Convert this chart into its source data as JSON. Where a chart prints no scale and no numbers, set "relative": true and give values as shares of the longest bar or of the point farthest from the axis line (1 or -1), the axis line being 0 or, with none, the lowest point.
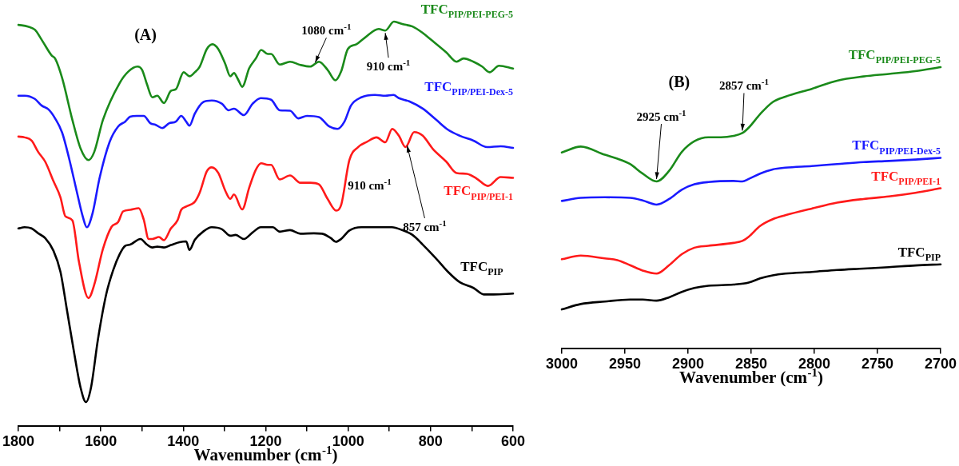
{
  "chart_data": [
    {
      "type": "line",
      "relative": true,
      "xlabel": "Wavenumber (cm$^{-1}$)",
      "xlim": [
        1800,
        600
      ],
      "xticks": [
        1800,
        {
          "value": 1700,
          "label": null
        },
        1600,
        {
          "value": 1500,
          "label": null
        },
        1400,
        {
          "value": 1300,
          "label": null
        },
        1200,
        {
          "value": 1100,
          "label": null
        },
        1000,
        {
          "value": 900,
          "label": null
        },
        800,
        {
          "value": 700,
          "label": null
        },
        600
      ],
      "tick_labels": "x",
      "marker": "none",
      "line_style": "solid",
      "annotations": [
        "(A)",
        {
          "text": "1080 cm$^{-1}$",
          "x": 1080,
          "y": 0.893
        },
        {
          "text": "910 cm$^{-1}$",
          "x": 910,
          "y": 0.978
        },
        "910 cm$^{-1}$",
        {
          "text": "857 cm$^{-1}$",
          "x": 857,
          "y": 0.7
        }
      ],
      "series": [
        {
          "name": "TFC$_{PIP/PEI-PEG-5}$",
          "color": "#1a8a1a",
          "x": [
            1800,
            1777,
            1760,
            1744,
            1719,
            1711,
            1694,
            1669,
            1649,
            1630,
            1616,
            1595,
            1554,
            1533,
            1511,
            1500,
            1488,
            1475,
            1463,
            1447,
            1430,
            1418,
            1399,
            1385,
            1372,
            1360,
            1343,
            1329,
            1315,
            1298,
            1286,
            1277,
            1267,
            1257,
            1240,
            1224,
            1211,
            1195,
            1187,
            1166,
            1141,
            1116,
            1092,
            1071,
            1050,
            1031,
            1017,
            1001,
            980,
            960,
            926,
            910,
            889,
            869,
            844,
            819,
            795,
            762,
            737,
            720,
            696,
            675,
            657,
            634,
            600
          ],
          "values": [
            0.992,
            0.988,
            0.98,
            0.956,
            0.916,
            0.909,
            0.861,
            0.757,
            0.686,
            0.658,
            0.678,
            0.757,
            0.849,
            0.877,
            0.889,
            0.881,
            0.845,
            0.813,
            0.817,
            0.799,
            0.829,
            0.833,
            0.875,
            0.865,
            0.875,
            0.889,
            0.932,
            0.944,
            0.932,
            0.895,
            0.865,
            0.873,
            0.857,
            0.839,
            0.885,
            0.909,
            0.93,
            0.92,
            0.92,
            0.894,
            0.901,
            0.893,
            0.889,
            0.901,
            0.881,
            0.855,
            0.877,
            0.932,
            0.944,
            0.96,
            0.982,
            0.978,
            1,
            0.994,
            0.988,
            0.972,
            0.952,
            0.924,
            0.901,
            0.909,
            0.901,
            0.889,
            0.875,
            0.891,
            0.884
          ]
        },
        {
          "name": "TFC$_{PIP/PEI-Dex-5}$",
          "color": "#1a1aff",
          "x": [
            1800,
            1785,
            1760,
            1744,
            1727,
            1711,
            1694,
            1677,
            1657,
            1644,
            1634,
            1620,
            1603,
            1579,
            1558,
            1541,
            1529,
            1513,
            1496,
            1480,
            1467,
            1451,
            1434,
            1418,
            1405,
            1393,
            1385,
            1372,
            1352,
            1331,
            1306,
            1290,
            1277,
            1253,
            1232,
            1212,
            1187,
            1166,
            1141,
            1121,
            1100,
            1071,
            1046,
            1026,
            1009,
            993,
            968,
            935,
            910,
            890,
            877,
            852,
            819,
            786,
            758,
            729,
            696,
            663,
            630,
            600
          ],
          "values": [
            0.817,
            0.817,
            0.809,
            0.793,
            0.783,
            0.761,
            0.726,
            0.662,
            0.574,
            0.519,
            0.492,
            0.527,
            0.614,
            0.702,
            0.741,
            0.753,
            0.765,
            0.767,
            0.767,
            0.749,
            0.745,
            0.737,
            0.749,
            0.753,
            0.767,
            0.753,
            0.743,
            0.773,
            0.801,
            0.805,
            0.797,
            0.781,
            0.785,
            0.769,
            0.797,
            0.811,
            0.807,
            0.781,
            0.78,
            0.761,
            0.767,
            0.764,
            0.741,
            0.735,
            0.753,
            0.793,
            0.813,
            0.819,
            0.817,
            0.819,
            0.811,
            0.803,
            0.785,
            0.757,
            0.733,
            0.718,
            0.706,
            0.69,
            0.692,
            0.688
          ]
        },
        {
          "name": "TFC$_{PIP/PEI-1}$",
          "color": "#ff1a1a",
          "x": [
            1800,
            1785,
            1768,
            1752,
            1735,
            1715,
            1698,
            1686,
            1669,
            1653,
            1630,
            1616,
            1595,
            1574,
            1558,
            1546,
            1529,
            1508,
            1496,
            1484,
            1475,
            1459,
            1447,
            1430,
            1414,
            1405,
            1393,
            1372,
            1360,
            1343,
            1331,
            1315,
            1298,
            1286,
            1277,
            1257,
            1240,
            1224,
            1211,
            1195,
            1187,
            1166,
            1141,
            1116,
            1092,
            1071,
            1050,
            1029,
            1017,
            997,
            976,
            956,
            931,
            910,
            893,
            877,
            861,
            840,
            819,
            795,
            762,
            737,
            712,
            688,
            661,
            630,
            600
          ],
          "values": [
            0.716,
            0.714,
            0.706,
            0.678,
            0.654,
            0.606,
            0.566,
            0.519,
            0.509,
            0.406,
            0.317,
            0.35,
            0.438,
            0.493,
            0.505,
            0.531,
            0.535,
            0.539,
            0.511,
            0.463,
            0.463,
            0.468,
            0.46,
            0.489,
            0.509,
            0.535,
            0.543,
            0.555,
            0.578,
            0.63,
            0.64,
            0.626,
            0.582,
            0.562,
            0.573,
            0.536,
            0.59,
            0.634,
            0.65,
            0.646,
            0.646,
            0.61,
            0.62,
            0.602,
            0.602,
            0.598,
            0.562,
            0.533,
            0.547,
            0.658,
            0.69,
            0.702,
            0.714,
            0.702,
            0.735,
            0.718,
            0.69,
            0.727,
            0.718,
            0.686,
            0.654,
            0.626,
            0.624,
            0.612,
            0.594,
            0.616,
            0.614
          ]
        },
        {
          "name": "TFC$_{PIP}$",
          "color": "#000000",
          "x": [
            1800,
            1785,
            1768,
            1752,
            1735,
            1715,
            1698,
            1682,
            1665,
            1649,
            1636,
            1624,
            1607,
            1587,
            1570,
            1554,
            1541,
            1529,
            1504,
            1488,
            1475,
            1463,
            1447,
            1430,
            1409,
            1393,
            1385,
            1372,
            1352,
            1331,
            1306,
            1286,
            1273,
            1253,
            1232,
            1212,
            1183,
            1166,
            1141,
            1116,
            1083,
            1063,
            1042,
            1030,
            1017,
            997,
            968,
            927,
            894,
            869,
            844,
            819,
            786,
            758,
            729,
            696,
            671,
            647,
            600
          ],
          "values": [
            0.489,
            0.492,
            0.489,
            0.477,
            0.465,
            0.434,
            0.382,
            0.286,
            0.183,
            0.095,
            0.06,
            0.095,
            0.215,
            0.326,
            0.386,
            0.426,
            0.446,
            0.449,
            0.463,
            0.449,
            0.442,
            0.444,
            0.442,
            0.448,
            0.455,
            0.457,
            0.436,
            0.461,
            0.481,
            0.492,
            0.487,
            0.471,
            0.473,
            0.463,
            0.479,
            0.492,
            0.492,
            0.481,
            0.485,
            0.476,
            0.477,
            0.476,
            0.465,
            0.456,
            0.463,
            0.484,
            0.492,
            0.492,
            0.492,
            0.485,
            0.473,
            0.449,
            0.414,
            0.382,
            0.356,
            0.342,
            0.326,
            0.326,
            0.328
          ]
        }
      ]
    },
    {
      "type": "line",
      "relative": true,
      "xlabel": "Wavenumber (cm$^{-1}$)",
      "xlim": [
        3000,
        2700
      ],
      "xticks": [
        3000,
        2950,
        2900,
        2850,
        2800,
        2750,
        2700
      ],
      "tick_labels": "x",
      "marker": "none",
      "line_style": "solid",
      "annotations": [
        "(B)",
        {
          "text": "2925 cm$^{-1}$",
          "x": 2925,
          "y": 0.594
        },
        {
          "text": "2857 cm$^{-1}$",
          "x": 2857,
          "y": 0.766
        }
      ],
      "series": [
        {
          "name": "TFC$_{PIP/PEI-PEG-5}$",
          "color": "#1a8a1a",
          "x": [
            3000,
            2985,
            2966,
            2956,
            2946,
            2936,
            2925,
            2915,
            2905,
            2895,
            2884,
            2874,
            2864,
            2857,
            2852,
            2843,
            2833,
            2823,
            2802,
            2782,
            2761,
            2741,
            2720,
            2700
          ],
          "values": [
            0.697,
            0.718,
            0.689,
            0.675,
            0.656,
            0.622,
            0.594,
            0.632,
            0.699,
            0.737,
            0.751,
            0.751,
            0.756,
            0.766,
            0.785,
            0.833,
            0.876,
            0.895,
            0.923,
            0.952,
            0.967,
            0.976,
            0.986,
            1
          ]
        },
        {
          "name": "TFC$_{PIP/PEI-Dex-5}$",
          "color": "#1a1aff",
          "x": [
            3000,
            2985,
            2966,
            2946,
            2936,
            2925,
            2915,
            2905,
            2895,
            2884,
            2864,
            2857,
            2852,
            2843,
            2833,
            2823,
            2802,
            2782,
            2761,
            2741,
            2720,
            2700
          ],
          "values": [
            0.525,
            0.536,
            0.538,
            0.536,
            0.527,
            0.512,
            0.532,
            0.565,
            0.584,
            0.592,
            0.596,
            0.594,
            0.603,
            0.622,
            0.637,
            0.643,
            0.649,
            0.656,
            0.663,
            0.667,
            0.672,
            0.678
          ]
        },
        {
          "name": "TFC$_{PIP/PEI-1}$",
          "color": "#ff1a1a",
          "x": [
            3000,
            2985,
            2966,
            2956,
            2946,
            2936,
            2925,
            2915,
            2905,
            2895,
            2884,
            2864,
            2857,
            2852,
            2843,
            2833,
            2823,
            2802,
            2782,
            2761,
            2741,
            2720,
            2700
          ],
          "values": [
            0.318,
            0.331,
            0.321,
            0.315,
            0.297,
            0.278,
            0.267,
            0.297,
            0.336,
            0.359,
            0.366,
            0.376,
            0.383,
            0.398,
            0.436,
            0.46,
            0.474,
            0.498,
            0.519,
            0.532,
            0.541,
            0.554,
            0.57
          ]
        },
        {
          "name": "TFC$_{PIP}$",
          "color": "#000000",
          "x": [
            3000,
            2985,
            2966,
            2946,
            2936,
            2925,
            2915,
            2905,
            2895,
            2884,
            2864,
            2852,
            2843,
            2833,
            2823,
            2802,
            2782,
            2761,
            2741,
            2720,
            2700
          ],
          "values": [
            0.14,
            0.159,
            0.168,
            0.175,
            0.175,
            0.171,
            0.183,
            0.202,
            0.216,
            0.224,
            0.228,
            0.235,
            0.25,
            0.261,
            0.267,
            0.273,
            0.28,
            0.285,
            0.29,
            0.296,
            0.3
          ]
        }
      ]
    }
  ]
}
